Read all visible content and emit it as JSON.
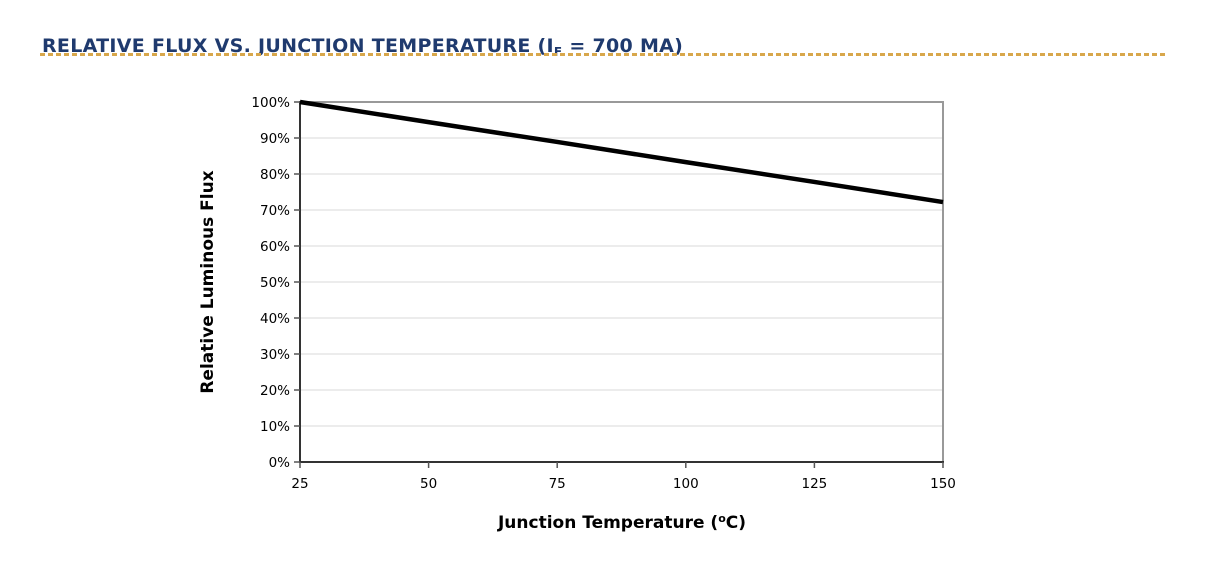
{
  "header": {
    "title_prefix": "RELATIVE FLUX VS. JUNCTION TEMPERATURE (I",
    "title_sub": "F",
    "title_suffix": " = 700 MA)",
    "title_color": "#1f3a6e",
    "divider_color": "#d8a74b"
  },
  "chart_data": {
    "type": "line",
    "title": "RELATIVE FLUX VS. JUNCTION TEMPERATURE (IF = 700 MA)",
    "x": [
      25,
      50,
      75,
      100,
      125,
      150
    ],
    "series": [
      {
        "name": "Relative Luminous Flux",
        "values": [
          100,
          94.4,
          88.9,
          83.3,
          77.8,
          72.2
        ]
      }
    ],
    "xlabel": "Junction Temperature (°C)",
    "xlabel_parts": {
      "prefix": "Junction Temperature (",
      "sup": "o",
      "suffix": "C)"
    },
    "ylabel": "Relative Luminous Flux",
    "xlim": [
      25,
      150
    ],
    "ylim": [
      0,
      100
    ],
    "xticks": [
      25,
      50,
      75,
      100,
      125,
      150
    ],
    "yticks": [
      0,
      10,
      20,
      30,
      40,
      50,
      60,
      70,
      80,
      90,
      100
    ],
    "ytick_suffix": "%",
    "grid": "horizontal-only",
    "legend": "none",
    "colors": {
      "series": "#000000",
      "grid": "#e0e0e0",
      "plot_border": "#999999",
      "axis": "#333333",
      "tick": "#555555",
      "text": "#000000"
    }
  }
}
